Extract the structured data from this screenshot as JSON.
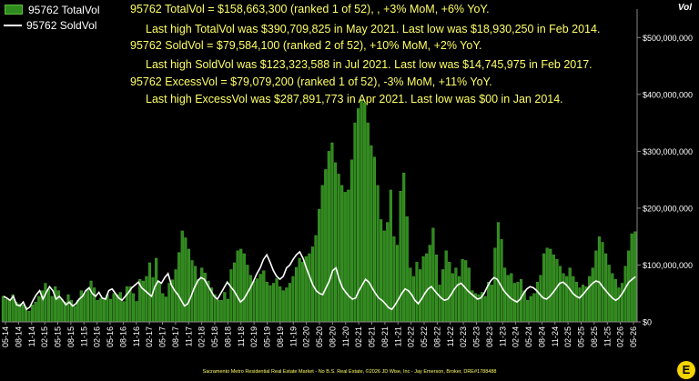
{
  "legend": {
    "total_label": "95762 TotalVol",
    "sold_label": "95762 SoldVol"
  },
  "annotations": [
    "95762 TotalVol = $158,663,300 (ranked 1 of 52), , +3% MoM, +6% YoY.",
    "Last high TotalVol was $390,709,825 in May 2021. Last low was $18,930,250 in Feb 2014.",
    "95762 SoldVol = $79,584,100 (ranked 2 of 52), +10% MoM, +2% YoY.",
    "Last high SoldVol was $123,323,588 in Jul 2021. Last low was $14,745,975 in Feb 2017.",
    "95762 ExcessVol = $79,079,200 (ranked 1 of 52), -3% MoM, +11% YoY.",
    "Last high ExcessVol was $287,891,773 in Apr 2021. Last low was $00 in Jan 2014."
  ],
  "ylabel": "Vol",
  "footer": "Sacramento Metro Residential Real Estate Market - No B.S. Real Estate, ©2026 JD Wise, Inc - Jay Emerson, Broker, DRE#1788488",
  "logo_letter": "E",
  "colors": {
    "bar": "#2e8b1e",
    "bar_edge": "#5fbf3a",
    "line": "#ffffff",
    "annotation": "#ffff66",
    "background": "#000000"
  },
  "chart_data": {
    "type": "bar",
    "y_ticks": [
      "$0",
      "$100,000,000",
      "$200,000,000",
      "$300,000,000",
      "$400,000,000",
      "$500,000,000"
    ],
    "ylim": [
      0,
      550000000
    ],
    "x_tick_labels": [
      "05-14",
      "08-14",
      "11-14",
      "02-15",
      "05-15",
      "08-15",
      "11-15",
      "02-16",
      "05-16",
      "08-16",
      "11-16",
      "02-17",
      "05-17",
      "08-17",
      "11-17",
      "02-18",
      "05-18",
      "08-18",
      "11-18",
      "02-19",
      "05-19",
      "08-19",
      "11-19",
      "02-20",
      "05-20",
      "08-20",
      "11-20",
      "02-21",
      "05-21",
      "08-21",
      "11-21",
      "02-22",
      "05-22",
      "08-22",
      "11-22",
      "02-23",
      "05-23",
      "08-23",
      "11-23",
      "02-24",
      "05-24",
      "08-24",
      "11-24",
      "02-25",
      "05-25",
      "08-25",
      "11-25",
      "02-26",
      "05-26"
    ],
    "series": [
      {
        "name": "95762 TotalVol",
        "kind": "bar",
        "values": [
          45000000,
          40000000,
          38000000,
          48000000,
          35000000,
          32000000,
          30000000,
          26000000,
          19000000,
          30000000,
          35000000,
          45000000,
          55000000,
          68000000,
          58000000,
          45000000,
          62000000,
          55000000,
          40000000,
          35000000,
          48000000,
          38000000,
          28000000,
          38000000,
          55000000,
          50000000,
          58000000,
          72000000,
          60000000,
          38000000,
          42000000,
          42000000,
          48000000,
          40000000,
          50000000,
          48000000,
          52000000,
          36000000,
          62000000,
          62000000,
          50000000,
          36000000,
          75000000,
          72000000,
          80000000,
          104000000,
          78000000,
          112000000,
          70000000,
          50000000,
          44000000,
          68000000,
          74000000,
          92000000,
          122000000,
          160000000,
          148000000,
          128000000,
          108000000,
          98000000,
          75000000,
          95000000,
          86000000,
          72000000,
          60000000,
          48000000,
          38000000,
          38000000,
          52000000,
          40000000,
          92000000,
          104000000,
          125000000,
          128000000,
          120000000,
          100000000,
          82000000,
          72000000,
          76000000,
          84000000,
          90000000,
          70000000,
          64000000,
          68000000,
          76000000,
          62000000,
          55000000,
          60000000,
          68000000,
          80000000,
          96000000,
          112000000,
          105000000,
          115000000,
          120000000,
          132000000,
          152000000,
          198000000,
          240000000,
          268000000,
          300000000,
          315000000,
          280000000,
          260000000,
          240000000,
          228000000,
          232000000,
          285000000,
          350000000,
          375000000,
          390000000,
          385000000,
          350000000,
          310000000,
          290000000,
          240000000,
          180000000,
          160000000,
          175000000,
          232000000,
          150000000,
          135000000,
          230000000,
          262000000,
          185000000,
          95000000,
          80000000,
          105000000,
          92000000,
          115000000,
          120000000,
          135000000,
          165000000,
          118000000,
          65000000,
          92000000,
          125000000,
          105000000,
          85000000,
          95000000,
          80000000,
          110000000,
          108000000,
          95000000,
          55000000,
          50000000,
          48000000,
          52000000,
          45000000,
          70000000,
          65000000,
          130000000,
          175000000,
          145000000,
          95000000,
          82000000,
          85000000,
          68000000,
          70000000,
          75000000,
          55000000,
          38000000,
          45000000,
          50000000,
          70000000,
          82000000,
          120000000,
          130000000,
          128000000,
          118000000,
          110000000,
          98000000,
          85000000,
          80000000,
          95000000,
          80000000,
          70000000,
          60000000,
          65000000,
          62000000,
          80000000,
          95000000,
          125000000,
          150000000,
          140000000,
          120000000,
          100000000,
          85000000,
          75000000,
          60000000,
          68000000,
          98000000,
          125000000,
          155000000,
          158663300
        ]
      },
      {
        "name": "95762 SoldVol",
        "kind": "line",
        "values": [
          45000000,
          42000000,
          38000000,
          45000000,
          30000000,
          28000000,
          35000000,
          22000000,
          26000000,
          38000000,
          48000000,
          55000000,
          40000000,
          52000000,
          62000000,
          55000000,
          40000000,
          45000000,
          38000000,
          30000000,
          35000000,
          28000000,
          32000000,
          40000000,
          45000000,
          55000000,
          60000000,
          50000000,
          45000000,
          52000000,
          42000000,
          40000000,
          55000000,
          58000000,
          50000000,
          42000000,
          38000000,
          45000000,
          52000000,
          60000000,
          65000000,
          70000000,
          60000000,
          55000000,
          50000000,
          45000000,
          62000000,
          72000000,
          68000000,
          78000000,
          85000000,
          65000000,
          55000000,
          48000000,
          38000000,
          28000000,
          32000000,
          45000000,
          60000000,
          72000000,
          78000000,
          75000000,
          65000000,
          55000000,
          45000000,
          40000000,
          50000000,
          60000000,
          70000000,
          62000000,
          55000000,
          45000000,
          35000000,
          40000000,
          50000000,
          60000000,
          72000000,
          85000000,
          95000000,
          110000000,
          118000000,
          105000000,
          90000000,
          80000000,
          75000000,
          80000000,
          95000000,
          100000000,
          110000000,
          118000000,
          123323588,
          112000000,
          95000000,
          80000000,
          65000000,
          55000000,
          50000000,
          48000000,
          60000000,
          72000000,
          90000000,
          95000000,
          75000000,
          60000000,
          52000000,
          45000000,
          40000000,
          42000000,
          55000000,
          65000000,
          75000000,
          70000000,
          60000000,
          50000000,
          42000000,
          38000000,
          32000000,
          25000000,
          22000000,
          30000000,
          40000000,
          50000000,
          58000000,
          55000000,
          48000000,
          38000000,
          32000000,
          40000000,
          50000000,
          58000000,
          62000000,
          55000000,
          48000000,
          42000000,
          38000000,
          40000000,
          48000000,
          58000000,
          65000000,
          68000000,
          62000000,
          55000000,
          50000000,
          45000000,
          40000000,
          42000000,
          50000000,
          62000000,
          72000000,
          78000000,
          75000000,
          65000000,
          55000000,
          48000000,
          42000000,
          38000000,
          35000000,
          40000000,
          50000000,
          58000000,
          62000000,
          60000000,
          55000000,
          48000000,
          42000000,
          40000000,
          45000000,
          52000000,
          60000000,
          68000000,
          70000000,
          65000000,
          58000000,
          50000000,
          45000000,
          42000000,
          48000000,
          55000000,
          62000000,
          68000000,
          72000000,
          70000000,
          62000000,
          55000000,
          48000000,
          42000000,
          38000000,
          42000000,
          50000000,
          60000000,
          70000000,
          75000000,
          79584100
        ]
      }
    ],
    "grid": false,
    "legend_position": "top-left"
  }
}
